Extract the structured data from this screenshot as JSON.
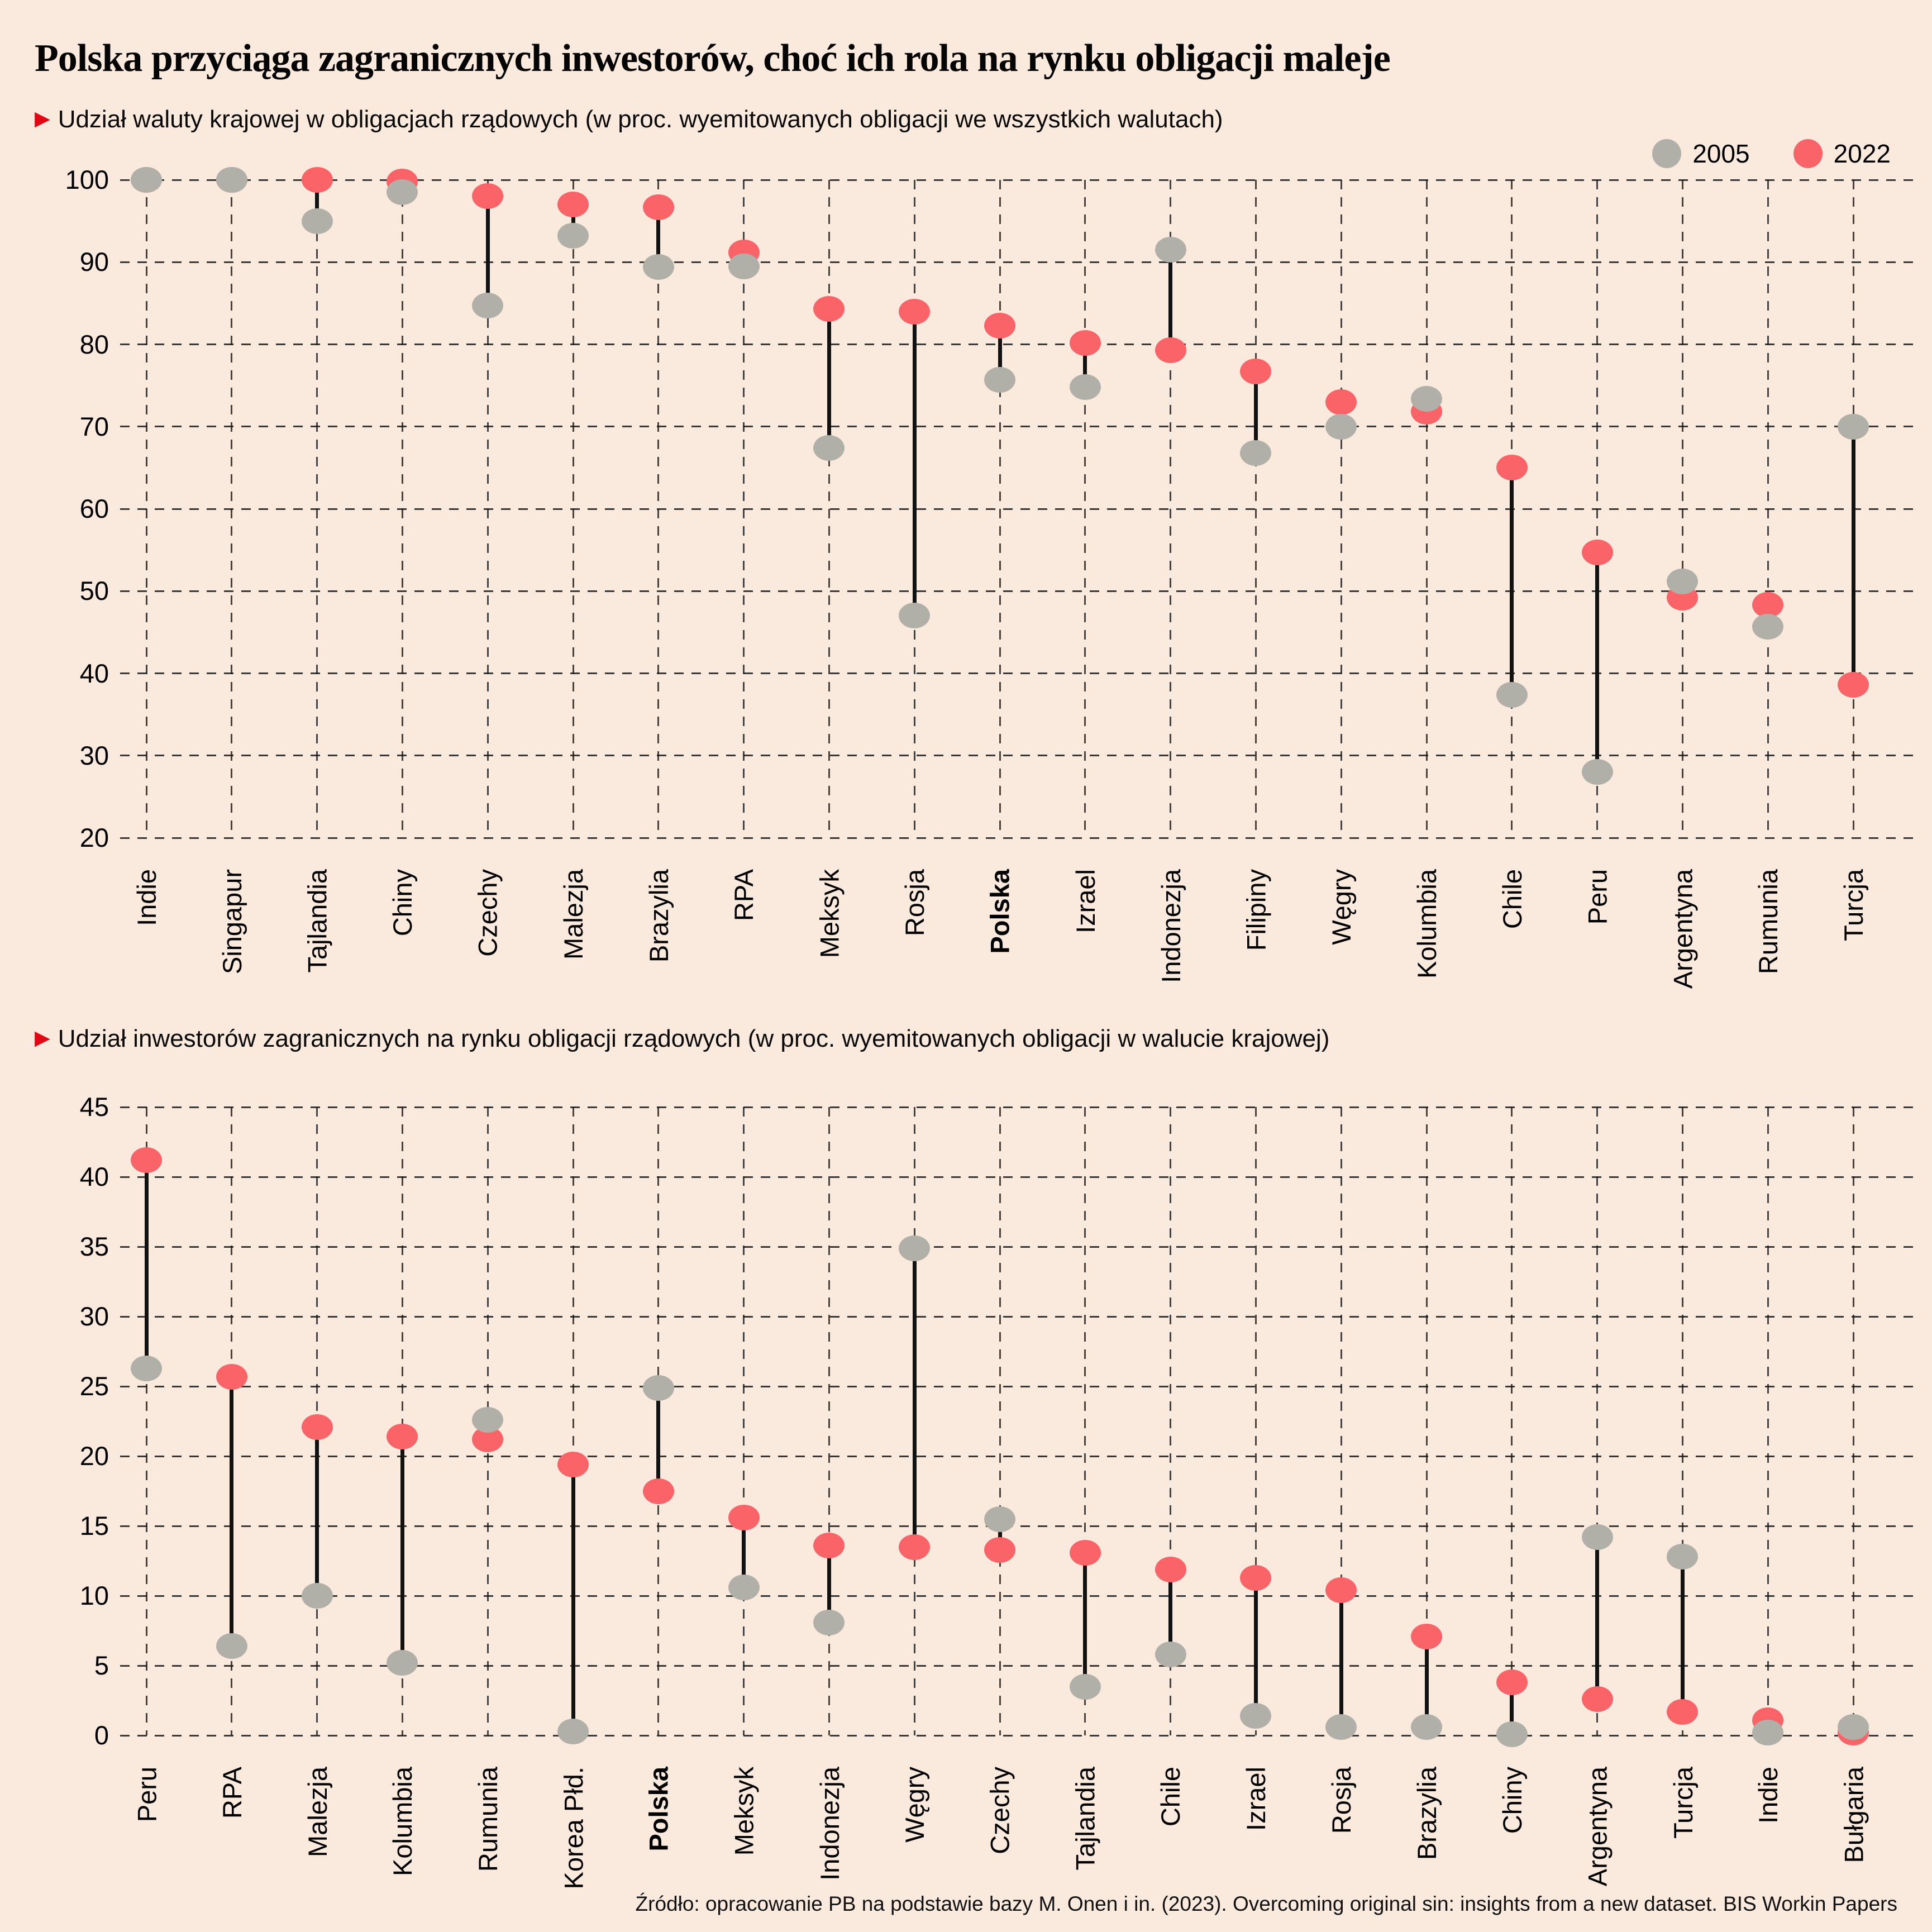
{
  "title": "Polska przyciąga zagranicznych inwestorów, choć ich rola na rynku obligacji maleje",
  "legend": {
    "items": [
      {
        "label": "2005",
        "color": "#b0b0a8"
      },
      {
        "label": "2022",
        "color": "#fa6469"
      }
    ]
  },
  "source": "Źródło: opracowanie PB na podstawie bazy M. Onen i in. (2023). Overcoming original sin: insights from a new dataset. BIS Workin Papers",
  "colors": {
    "background": "#fae9dd",
    "dot_2005": "#b0b0a8",
    "dot_2022": "#fa6469",
    "connector": "#121212",
    "grid": "#1a1a1a",
    "marker": "#e30613"
  },
  "chart_data": [
    {
      "type": "scatter",
      "variant": "dumbbell",
      "title": "Udział waluty krajowej w obligacjach rządowych (w proc. wyemitowanych obligacji we wszystkich walutach)",
      "ylim": [
        20,
        100
      ],
      "ytick_step": 10,
      "grid": "dashed",
      "legend_position": "top-right",
      "bold_category": "Polska",
      "categories": [
        "Indie",
        "Singapur",
        "Tajlandia",
        "Chiny",
        "Czechy",
        "Malezja",
        "Brazylia",
        "RPA",
        "Meksyk",
        "Rosja",
        "Polska",
        "Izrael",
        "Indonezja",
        "Filipiny",
        "Węgry",
        "Kolumbia",
        "Chile",
        "Peru",
        "Argentyna",
        "Rumunia",
        "Turcja"
      ],
      "series": [
        {
          "name": "2005",
          "values": [
            100,
            100,
            95,
            98.5,
            84.7,
            93.2,
            89.4,
            89.5,
            67.4,
            47,
            75.7,
            74.8,
            91.5,
            66.8,
            70,
            73.4,
            37.4,
            28,
            51.2,
            45.7,
            70
          ]
        },
        {
          "name": "2022",
          "values": [
            100,
            100,
            100,
            99.8,
            98,
            97,
            96.7,
            91.2,
            84.3,
            84,
            82.3,
            80.2,
            79.3,
            76.7,
            73,
            71.8,
            65,
            54.7,
            49.2,
            48.3,
            38.6
          ]
        }
      ]
    },
    {
      "type": "scatter",
      "variant": "dumbbell",
      "title": "Udział inwestorów zagranicznych na rynku obligacji rządowych (w proc. wyemitowanych obligacji w walucie krajowej)",
      "ylim": [
        0,
        45
      ],
      "ytick_step": 5,
      "grid": "dashed",
      "bold_category": "Polska",
      "categories": [
        "Peru",
        "RPA",
        "Malezja",
        "Kolumbia",
        "Rumunia",
        "Korea Płd.",
        "Polska",
        "Meksyk",
        "Indonezja",
        "Węgry",
        "Czechy",
        "Tajlandia",
        "Chile",
        "Izrael",
        "Rosja",
        "Brazylia",
        "Chiny",
        "Argentyna",
        "Turcja",
        "Indie",
        "Bułgaria"
      ],
      "series": [
        {
          "name": "2005",
          "values": [
            26.3,
            6.4,
            10,
            5.2,
            22.6,
            0.3,
            24.9,
            10.6,
            8.1,
            34.9,
            15.5,
            3.5,
            5.8,
            1.4,
            0.6,
            0.6,
            0.1,
            14.2,
            12.8,
            0.2,
            0.6
          ]
        },
        {
          "name": "2022",
          "values": [
            41.2,
            25.7,
            22.1,
            21.4,
            21.2,
            19.4,
            17.5,
            15.6,
            13.6,
            13.5,
            13.3,
            13.1,
            11.9,
            11.3,
            10.4,
            7.1,
            3.8,
            2.6,
            1.7,
            1.1,
            0.2
          ]
        }
      ]
    }
  ]
}
